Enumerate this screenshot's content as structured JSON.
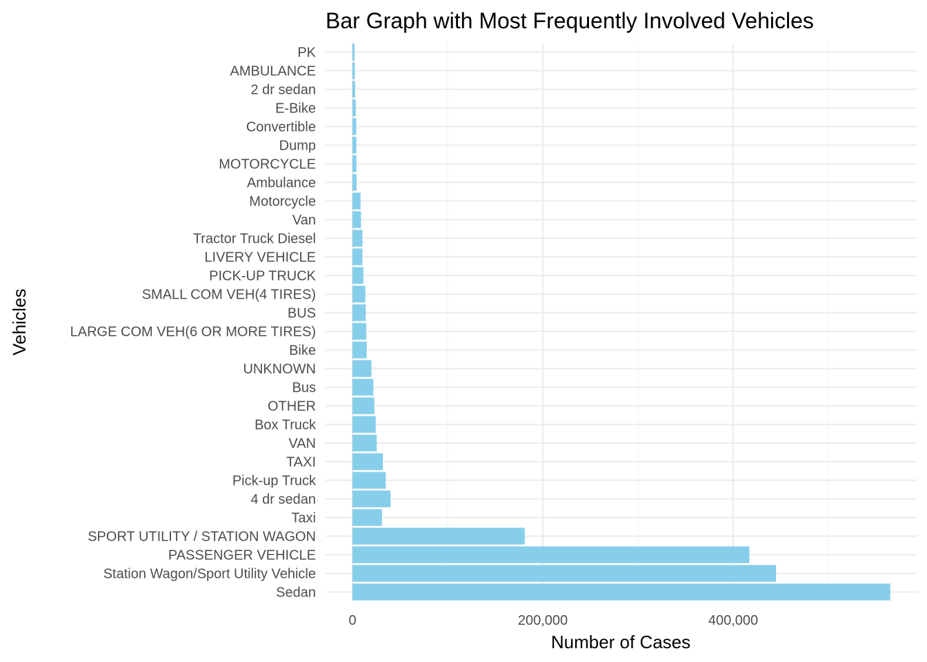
{
  "chart_data": {
    "type": "bar",
    "orientation": "horizontal",
    "title": "Bar Graph with Most Frequently Involved Vehicles",
    "xlabel": "Number of Cases",
    "ylabel": "Vehicles",
    "xlim": [
      0,
      575000
    ],
    "x_ticks": [
      0,
      200000,
      400000
    ],
    "x_tick_labels": [
      "0",
      "200,000",
      "400,000"
    ],
    "grid": true,
    "bar_color": "#87CEEB",
    "categories": [
      "Sedan",
      "Station Wagon/Sport Utility Vehicle",
      "PASSENGER VEHICLE",
      "SPORT UTILITY / STATION WAGON",
      "Taxi",
      "4 dr sedan",
      "Pick-up Truck",
      "TAXI",
      "VAN",
      "Box Truck",
      "OTHER",
      "Bus",
      "UNKNOWN",
      "Bike",
      "LARGE COM VEH(6 OR MORE TIRES)",
      "BUS",
      "SMALL COM VEH(4 TIRES) ",
      "PICK-UP TRUCK",
      "LIVERY VEHICLE",
      "Tractor Truck Diesel",
      "Van",
      "Motorcycle",
      "Ambulance",
      "MOTORCYCLE",
      "Dump",
      "Convertible",
      "E-Bike",
      "2 dr sedan",
      "AMBULANCE",
      "PK"
    ],
    "values": [
      565000,
      445000,
      417000,
      181000,
      31000,
      40000,
      35000,
      32000,
      25500,
      24500,
      23000,
      22000,
      20000,
      15000,
      14500,
      14000,
      13500,
      11500,
      10500,
      10500,
      9000,
      8500,
      4300,
      4200,
      4100,
      4000,
      3500,
      2800,
      2500,
      2200
    ]
  }
}
